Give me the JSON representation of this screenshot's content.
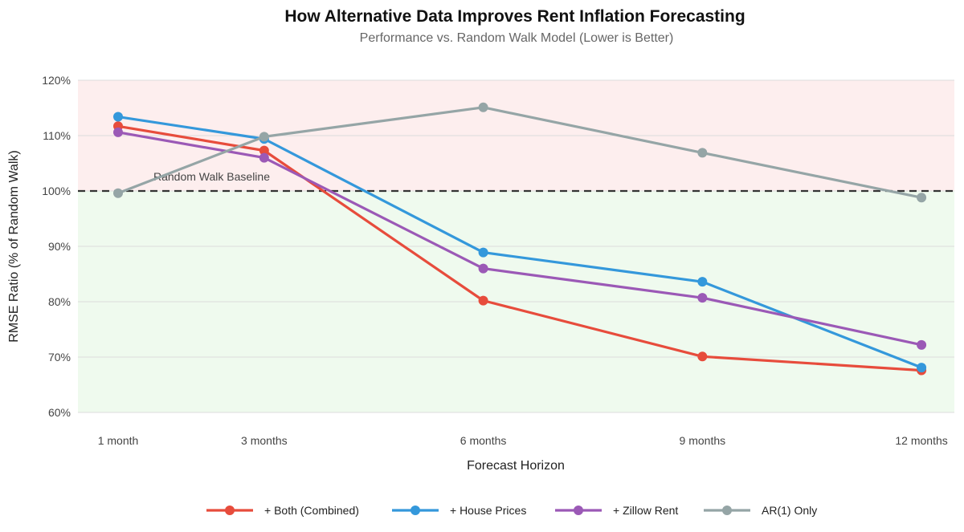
{
  "chart_data": {
    "type": "line",
    "title": "How Alternative Data Improves Rent Inflation Forecasting",
    "subtitle": "Performance vs. Random Walk Model (Lower is Better)",
    "xlabel": "Forecast Horizon",
    "ylabel": "RMSE Ratio (% of Random Walk)",
    "x": [
      1,
      3,
      6,
      9,
      12
    ],
    "categories": [
      "1 month",
      "3 months",
      "6 months",
      "9 months",
      "12 months"
    ],
    "xlim": [
      0.45,
      12.45
    ],
    "ylim": [
      60,
      120
    ],
    "yticks": [
      60,
      70,
      80,
      90,
      100,
      110,
      120
    ],
    "ytick_labels": [
      "60%",
      "70%",
      "80%",
      "90%",
      "100%",
      "110%",
      "120%"
    ],
    "grid": true,
    "legend_position": "bottom",
    "baseline": {
      "value": 100,
      "label": "Random Walk Baseline",
      "color": "#333333"
    },
    "regions": [
      {
        "from": 100,
        "to": 120,
        "color": "#fdeeee"
      },
      {
        "from": 60,
        "to": 100,
        "color": "#effaee"
      }
    ],
    "series": [
      {
        "name": "+ Both (Combined)",
        "color": "#e74c3c",
        "values": [
          111.7,
          107.3,
          80.2,
          70.1,
          67.6
        ]
      },
      {
        "name": "+ House Prices",
        "color": "#3498db",
        "values": [
          113.4,
          109.4,
          88.9,
          83.6,
          68.1
        ]
      },
      {
        "name": "+ Zillow Rent",
        "color": "#9b59b6",
        "values": [
          110.6,
          106.0,
          86.0,
          80.7,
          72.2
        ]
      },
      {
        "name": "AR(1) Only",
        "color": "#95a5a6",
        "values": [
          99.6,
          109.8,
          115.1,
          106.9,
          98.8
        ]
      }
    ]
  }
}
